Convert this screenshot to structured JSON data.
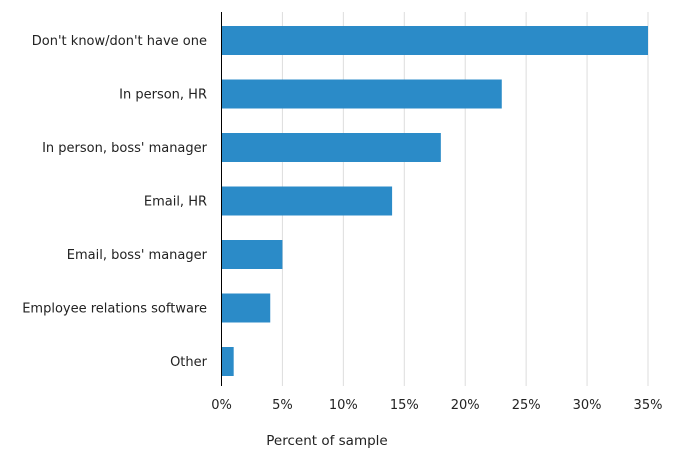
{
  "chart_data": {
    "type": "bar",
    "orientation": "horizontal",
    "categories": [
      "Don't know/don't have one",
      "In person, HR",
      "In person, boss' manager",
      "Email, HR",
      "Email, boss' manager",
      "Employee relations software",
      "Other"
    ],
    "values": [
      35,
      23,
      18,
      14,
      5,
      4,
      1
    ],
    "xlabel": "Percent of sample",
    "ylabel": "",
    "xlim": [
      0,
      35
    ],
    "x_ticks": [
      0,
      5,
      10,
      15,
      20,
      25,
      30,
      35
    ],
    "x_tick_labels": [
      "0%",
      "5%",
      "10%",
      "15%",
      "20%",
      "25%",
      "30%",
      "35%"
    ],
    "grid": "vertical",
    "colors": {
      "bar": "#2b8bc8",
      "grid": "#dddddd",
      "axis": "#000000"
    }
  }
}
